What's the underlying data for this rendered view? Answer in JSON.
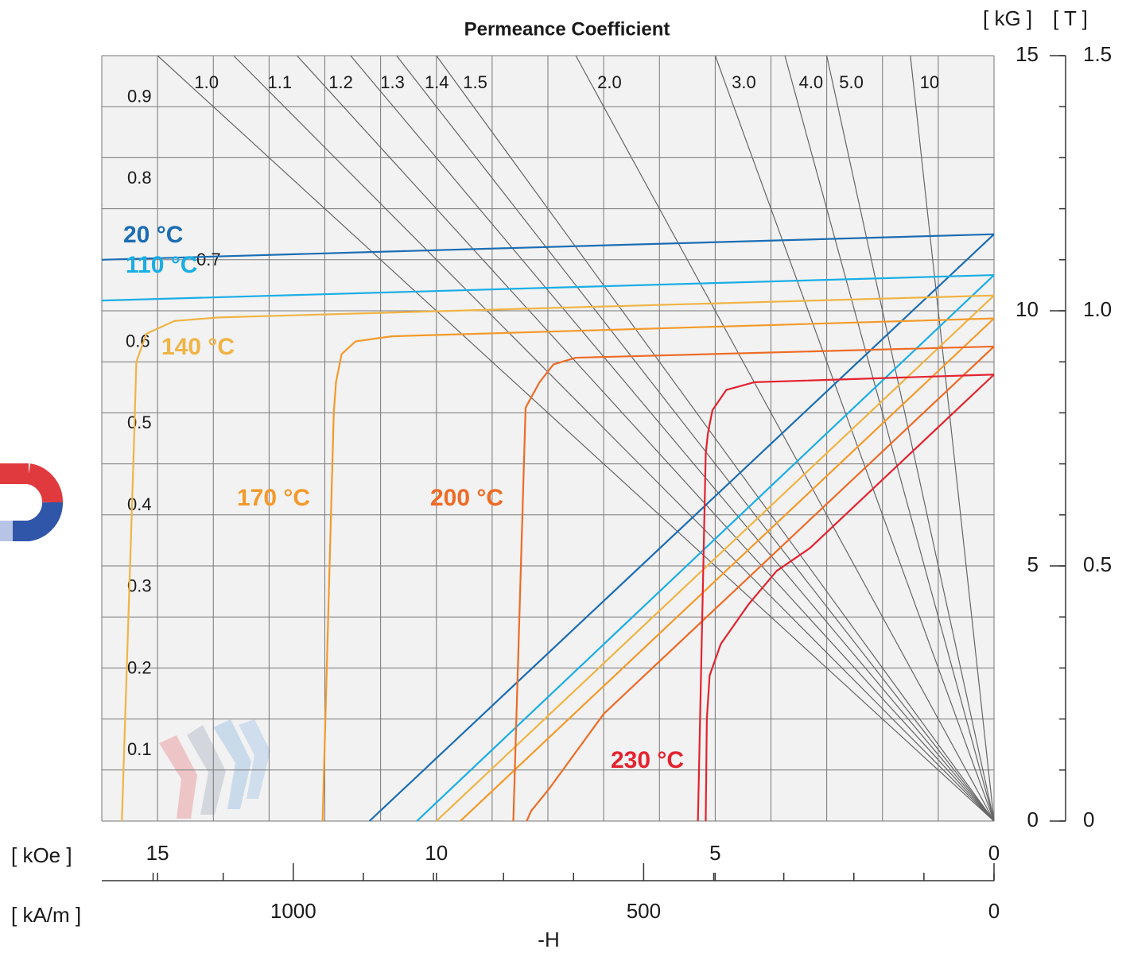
{
  "chart_data": {
    "type": "line",
    "title": "Permeance Coefficient",
    "x_unit_label": "[ kOe ]",
    "x2_unit_label": "[ kA/m ]",
    "x_label": "-H",
    "y_unit_label": "[ kG ]",
    "y2_unit_label": "[ T ]",
    "xlim": [
      16,
      0
    ],
    "xticks": [
      15,
      10,
      5,
      0
    ],
    "x_gridlines": [
      0,
      1,
      2,
      3,
      4,
      5,
      6,
      7,
      8,
      9,
      10,
      11,
      12,
      13,
      14,
      15,
      16
    ],
    "x2lim": [
      1273.24,
      0
    ],
    "x2ticks": [
      1000,
      500,
      0
    ],
    "x2_minor_ticks": [
      100,
      200,
      300,
      400,
      600,
      700,
      800,
      900,
      1100,
      1200
    ],
    "ylim": [
      0,
      15
    ],
    "yticks": [
      0,
      5,
      10,
      15
    ],
    "y_gridlines": [
      0,
      1,
      2,
      3,
      4,
      5,
      6,
      7,
      8,
      9,
      10,
      11,
      12,
      13,
      14,
      15
    ],
    "y2lim": [
      0,
      1.5
    ],
    "y2ticks": [
      0,
      0.5,
      {
        "value": 1,
        "label": "1.0"
      },
      1.5
    ],
    "y2_minor_ticks": [
      0.1,
      0.2,
      0.3,
      0.4,
      0.6,
      0.7,
      0.8,
      0.9,
      1.1,
      1.2,
      1.3,
      1.4
    ],
    "permeance_top": [
      {
        "value": 1,
        "label": "1.0"
      },
      1.1,
      1.2,
      1.3,
      1.4,
      1.5,
      {
        "value": 2,
        "label": "2.0"
      },
      {
        "value": 3,
        "label": "3.0"
      },
      {
        "value": 4,
        "label": "4.0"
      },
      {
        "value": 5,
        "label": "5.0"
      },
      10
    ],
    "permeance_left": [
      0.1,
      0.2,
      0.3,
      0.4,
      0.5,
      0.6,
      0.7,
      0.8,
      0.9
    ],
    "series": [
      {
        "name": "20 °C",
        "color": "#1b6db3",
        "intrinsic": {
          "x": [
            0,
            16
          ],
          "values": [
            11.5,
            11.0
          ]
        },
        "normal": {
          "x": [
            0,
            11.2
          ],
          "values": [
            11.5,
            0
          ]
        }
      },
      {
        "name": "110 °C",
        "color": "#1aaee5",
        "intrinsic": {
          "x": [
            0,
            16
          ],
          "values": [
            10.7,
            10.2
          ]
        },
        "normal": {
          "x": [
            0,
            10.35
          ],
          "values": [
            10.7,
            0
          ]
        }
      },
      {
        "name": "140 °C",
        "color": "#f0b445",
        "intrinsic": {
          "x": [
            0,
            13.9,
            14.7,
            15.2,
            15.38,
            15.44,
            15.64
          ],
          "values": [
            10.3,
            9.87,
            9.8,
            9.55,
            9.0,
            6.8,
            0
          ]
        },
        "normal": {
          "x": [
            0,
            10.0
          ],
          "values": [
            10.3,
            0
          ]
        }
      },
      {
        "name": "170 °C",
        "color": "#f39a2a",
        "intrinsic": {
          "x": [
            0,
            10.8,
            11.45,
            11.7,
            11.8,
            11.84,
            12.04
          ],
          "values": [
            9.85,
            9.5,
            9.4,
            9.15,
            8.6,
            8.0,
            0
          ]
        },
        "normal": {
          "x": [
            0,
            9.57
          ],
          "values": [
            9.85,
            0
          ]
        }
      },
      {
        "name": "200 °C",
        "color": "#ee6b26",
        "intrinsic": {
          "x": [
            0,
            7.5,
            7.9,
            8.15,
            8.4,
            8.62
          ],
          "values": [
            9.3,
            9.08,
            8.95,
            8.6,
            8.1,
            0
          ]
        },
        "normal": {
          "x": [
            0,
            7.0,
            7.6,
            8.0,
            8.3,
            8.38
          ],
          "values": [
            9.3,
            2.1,
            1.2,
            0.6,
            0.2,
            0
          ]
        }
      },
      {
        "name": "230 °C",
        "color": "#e3232f",
        "intrinsic": {
          "x": [
            0,
            4.3,
            4.8,
            5.05,
            5.13,
            5.17,
            5.31
          ],
          "values": [
            8.75,
            8.6,
            8.45,
            8.05,
            7.6,
            7.2,
            0
          ]
        },
        "normal": {
          "x": [
            0,
            3.3,
            3.9,
            4.4,
            4.9,
            5.1,
            5.15,
            5.17
          ],
          "values": [
            8.75,
            5.35,
            4.9,
            4.25,
            3.47,
            2.85,
            2.0,
            0
          ]
        }
      }
    ]
  }
}
